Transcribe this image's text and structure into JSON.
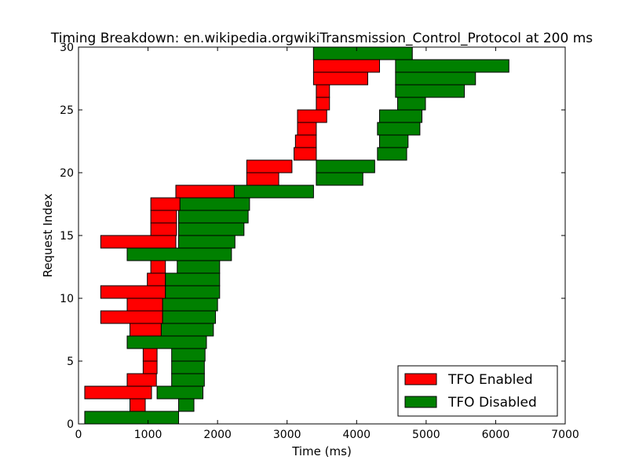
{
  "chart_data": {
    "type": "bar",
    "orientation": "horizontal",
    "title": "Timing Breakdown: en.wikipedia.orgwikiTransmission_Control_Protocol at 200 ms",
    "xlabel": "Time (ms)",
    "ylabel": "Request Index",
    "xlim": [
      0,
      7000
    ],
    "ylim": [
      0,
      30
    ],
    "xticks": [
      0,
      1000,
      2000,
      3000,
      4000,
      5000,
      6000,
      7000
    ],
    "xtick_labels": [
      "0",
      "1000",
      "2000",
      "3000",
      "4000",
      "5000",
      "6000",
      "7000"
    ],
    "yticks": [
      0,
      5,
      10,
      15,
      20,
      25,
      30
    ],
    "ytick_labels": [
      "0",
      "5",
      "10",
      "15",
      "20",
      "25",
      "30"
    ],
    "grid": false,
    "legend": "lower-right",
    "series": [
      {
        "name": "TFO Enabled",
        "color": "#ff0000",
        "bars": [
          {
            "index": 0,
            "start": 320,
            "end": 940
          },
          {
            "index": 1,
            "start": 740,
            "end": 960
          },
          {
            "index": 2,
            "start": 90,
            "end": 1050
          },
          {
            "index": 3,
            "start": 700,
            "end": 1120
          },
          {
            "index": 4,
            "start": 930,
            "end": 1130
          },
          {
            "index": 5,
            "start": 930,
            "end": 1130
          },
          {
            "index": 6,
            "start": 930,
            "end": 1130
          },
          {
            "index": 7,
            "start": 740,
            "end": 1190
          },
          {
            "index": 8,
            "start": 320,
            "end": 1210
          },
          {
            "index": 9,
            "start": 700,
            "end": 1210
          },
          {
            "index": 10,
            "start": 320,
            "end": 1250
          },
          {
            "index": 11,
            "start": 990,
            "end": 1250
          },
          {
            "index": 12,
            "start": 1040,
            "end": 1250
          },
          {
            "index": 13,
            "start": 1040,
            "end": 1250
          },
          {
            "index": 14,
            "start": 320,
            "end": 1400
          },
          {
            "index": 15,
            "start": 1040,
            "end": 1410
          },
          {
            "index": 16,
            "start": 1040,
            "end": 1410
          },
          {
            "index": 17,
            "start": 1040,
            "end": 1460
          },
          {
            "index": 18,
            "start": 1400,
            "end": 2400
          },
          {
            "index": 19,
            "start": 2420,
            "end": 2880
          },
          {
            "index": 20,
            "start": 2420,
            "end": 3070
          },
          {
            "index": 21,
            "start": 3100,
            "end": 3420
          },
          {
            "index": 22,
            "start": 3120,
            "end": 3420
          },
          {
            "index": 23,
            "start": 3150,
            "end": 3420
          },
          {
            "index": 24,
            "start": 3150,
            "end": 3570
          },
          {
            "index": 25,
            "start": 3420,
            "end": 3610
          },
          {
            "index": 26,
            "start": 3420,
            "end": 3610
          },
          {
            "index": 27,
            "start": 3380,
            "end": 4160
          },
          {
            "index": 28,
            "start": 3380,
            "end": 4330
          },
          {
            "index": 29,
            "start": 3380,
            "end": 4800
          }
        ]
      },
      {
        "name": "TFO Disabled",
        "color": "#008000",
        "bars": [
          {
            "index": 0,
            "start": 90,
            "end": 1440
          },
          {
            "index": 1,
            "start": 1440,
            "end": 1660
          },
          {
            "index": 2,
            "start": 1130,
            "end": 1790
          },
          {
            "index": 3,
            "start": 1340,
            "end": 1810
          },
          {
            "index": 4,
            "start": 1340,
            "end": 1810
          },
          {
            "index": 5,
            "start": 1340,
            "end": 1820
          },
          {
            "index": 6,
            "start": 700,
            "end": 1840
          },
          {
            "index": 7,
            "start": 1190,
            "end": 1940
          },
          {
            "index": 8,
            "start": 1210,
            "end": 1970
          },
          {
            "index": 9,
            "start": 1210,
            "end": 2000
          },
          {
            "index": 10,
            "start": 1250,
            "end": 2030
          },
          {
            "index": 11,
            "start": 1250,
            "end": 2030
          },
          {
            "index": 12,
            "start": 1420,
            "end": 2030
          },
          {
            "index": 13,
            "start": 700,
            "end": 2200
          },
          {
            "index": 14,
            "start": 1440,
            "end": 2250
          },
          {
            "index": 15,
            "start": 1440,
            "end": 2380
          },
          {
            "index": 16,
            "start": 1440,
            "end": 2440
          },
          {
            "index": 17,
            "start": 1460,
            "end": 2460
          },
          {
            "index": 18,
            "start": 2240,
            "end": 3380
          },
          {
            "index": 19,
            "start": 3420,
            "end": 4090
          },
          {
            "index": 20,
            "start": 3420,
            "end": 4260
          },
          {
            "index": 21,
            "start": 4300,
            "end": 4720
          },
          {
            "index": 22,
            "start": 4330,
            "end": 4740
          },
          {
            "index": 23,
            "start": 4300,
            "end": 4910
          },
          {
            "index": 24,
            "start": 4330,
            "end": 4940
          },
          {
            "index": 25,
            "start": 4590,
            "end": 4990
          },
          {
            "index": 26,
            "start": 4560,
            "end": 5550
          },
          {
            "index": 27,
            "start": 4560,
            "end": 5710
          },
          {
            "index": 28,
            "start": 4560,
            "end": 6190
          },
          {
            "index": 29,
            "start": 3380,
            "end": 4800
          }
        ]
      }
    ]
  }
}
